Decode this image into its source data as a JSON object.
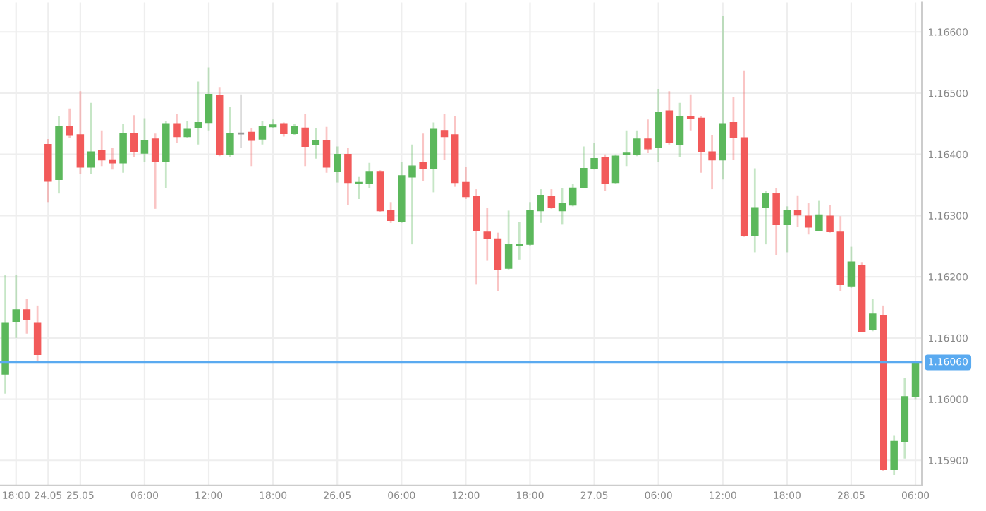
{
  "chart_data": {
    "type": "candlestick",
    "categories": [
      null,
      "18:00",
      null,
      null,
      "24.05",
      null,
      null,
      "25.05",
      null,
      null,
      null,
      null,
      null,
      "06:00",
      null,
      null,
      null,
      null,
      null,
      "12:00",
      null,
      null,
      null,
      null,
      null,
      "18:00",
      null,
      null,
      null,
      null,
      null,
      "26.05",
      null,
      null,
      null,
      null,
      null,
      "06:00",
      null,
      null,
      null,
      null,
      null,
      "12:00",
      null,
      null,
      null,
      null,
      null,
      "18:00",
      null,
      null,
      null,
      null,
      null,
      "27.05",
      null,
      null,
      null,
      null,
      null,
      "06:00",
      null,
      null,
      null,
      null,
      null,
      "12:00",
      null,
      null,
      null,
      null,
      null,
      "18:00",
      null,
      null,
      null,
      null,
      null,
      "28.05",
      null,
      null,
      null,
      null,
      null,
      "06:00"
    ],
    "ohlc": [
      [
        1.16041,
        1.16203,
        1.16009,
        1.16125
      ],
      [
        1.16127,
        1.16203,
        1.161,
        1.16146
      ],
      [
        1.16146,
        1.16164,
        1.16107,
        1.1613
      ],
      [
        1.16125,
        1.16153,
        1.16063,
        1.16073
      ],
      [
        1.16416,
        1.16425,
        1.16322,
        1.16356
      ],
      [
        1.16359,
        1.16462,
        1.16336,
        1.16445
      ],
      [
        1.16445,
        1.16475,
        1.16427,
        1.16432
      ],
      [
        1.16432,
        1.16503,
        1.16368,
        1.16379
      ],
      [
        1.16379,
        1.16484,
        1.16368,
        1.16404
      ],
      [
        1.16407,
        1.16439,
        1.16381,
        1.16391
      ],
      [
        1.16391,
        1.16411,
        1.16375,
        1.16386
      ],
      [
        1.16386,
        1.1645,
        1.1637,
        1.16434
      ],
      [
        1.16434,
        1.16464,
        1.16395,
        1.16404
      ],
      [
        1.16402,
        1.16459,
        1.16388,
        1.16423
      ],
      [
        1.16425,
        1.16434,
        1.16311,
        1.16388
      ],
      [
        1.16388,
        1.16455,
        1.16345,
        1.1645
      ],
      [
        1.1645,
        1.16466,
        1.16418,
        1.16429
      ],
      [
        1.16429,
        1.16455,
        1.16427,
        1.16441
      ],
      [
        1.16443,
        1.16519,
        1.16416,
        1.16452
      ],
      [
        1.16452,
        1.16542,
        1.16439,
        1.16498
      ],
      [
        1.16496,
        1.1651,
        1.16397,
        1.164
      ],
      [
        1.164,
        1.16478,
        1.16395,
        1.16434
      ],
      [
        1.16434,
        1.16498,
        1.16411,
        1.16434
      ],
      [
        1.16436,
        1.16443,
        1.16381,
        1.16423
      ],
      [
        1.16425,
        1.16455,
        1.16416,
        1.16445
      ],
      [
        1.16445,
        1.16457,
        1.16443,
        1.16448
      ],
      [
        1.1645,
        1.16452,
        1.16429,
        1.16434
      ],
      [
        1.16434,
        1.1645,
        1.16432,
        1.16445
      ],
      [
        1.16443,
        1.16466,
        1.16381,
        1.16413
      ],
      [
        1.16416,
        1.16443,
        1.16393,
        1.16423
      ],
      [
        1.16423,
        1.16445,
        1.1637,
        1.16379
      ],
      [
        1.16372,
        1.16413,
        1.16354,
        1.164
      ],
      [
        1.164,
        1.16411,
        1.16317,
        1.16354
      ],
      [
        1.16352,
        1.16363,
        1.16327,
        1.16354
      ],
      [
        1.16352,
        1.16386,
        1.16345,
        1.16372
      ],
      [
        1.16372,
        1.16374,
        1.16306,
        1.16308
      ],
      [
        1.16308,
        1.16322,
        1.16288,
        1.16292
      ],
      [
        1.1629,
        1.16388,
        1.16288,
        1.16365
      ],
      [
        1.16363,
        1.16416,
        1.16253,
        1.16381
      ],
      [
        1.16386,
        1.16434,
        1.16356,
        1.16377
      ],
      [
        1.16377,
        1.16452,
        1.16338,
        1.16441
      ],
      [
        1.16439,
        1.16466,
        1.16391,
        1.16429
      ],
      [
        1.16432,
        1.16462,
        1.16347,
        1.16354
      ],
      [
        1.16354,
        1.16379,
        1.16327,
        1.16331
      ],
      [
        1.16331,
        1.16343,
        1.16187,
        1.16276
      ],
      [
        1.16274,
        1.16313,
        1.16226,
        1.16262
      ],
      [
        1.16262,
        1.16272,
        1.16176,
        1.16212
      ],
      [
        1.16214,
        1.16308,
        1.16212,
        1.16253
      ],
      [
        1.16251,
        1.1629,
        1.16228,
        1.16253
      ],
      [
        1.16253,
        1.16322,
        1.16251,
        1.16308
      ],
      [
        1.16308,
        1.16343,
        1.16288,
        1.16333
      ],
      [
        1.16331,
        1.16343,
        1.16311,
        1.16313
      ],
      [
        1.16308,
        1.16345,
        1.16285,
        1.1632
      ],
      [
        1.16317,
        1.16352,
        1.16315,
        1.16345
      ],
      [
        1.16345,
        1.16413,
        1.16345,
        1.16377
      ],
      [
        1.16377,
        1.16418,
        1.16375,
        1.16393
      ],
      [
        1.16395,
        1.164,
        1.1634,
        1.16352
      ],
      [
        1.16354,
        1.164,
        1.16352,
        1.16397
      ],
      [
        1.164,
        1.16439,
        1.16381,
        1.16402
      ],
      [
        1.164,
        1.16439,
        1.16397,
        1.16425
      ],
      [
        1.16425,
        1.16457,
        1.16402,
        1.16409
      ],
      [
        1.16411,
        1.16507,
        1.16388,
        1.16468
      ],
      [
        1.16471,
        1.16503,
        1.16416,
        1.1642
      ],
      [
        1.16416,
        1.16484,
        1.16395,
        1.16462
      ],
      [
        1.16462,
        1.16498,
        1.16439,
        1.16459
      ],
      [
        1.16459,
        1.16462,
        1.1637,
        1.16404
      ],
      [
        1.16404,
        1.16432,
        1.16343,
        1.16391
      ],
      [
        1.16391,
        1.16626,
        1.16359,
        1.1645
      ],
      [
        1.16452,
        1.16494,
        1.16391,
        1.16427
      ],
      [
        1.16427,
        1.16537,
        1.16265,
        1.16267
      ],
      [
        1.16267,
        1.16377,
        1.1624,
        1.16313
      ],
      [
        1.16313,
        1.1634,
        1.16253,
        1.16336
      ],
      [
        1.16336,
        1.16345,
        1.16235,
        1.16285
      ],
      [
        1.16285,
        1.16315,
        1.1624,
        1.16308
      ],
      [
        1.16308,
        1.16333,
        1.16281,
        1.16301
      ],
      [
        1.16299,
        1.1632,
        1.16269,
        1.16281
      ],
      [
        1.16276,
        1.16324,
        1.16276,
        1.16301
      ],
      [
        1.16299,
        1.16317,
        1.16272,
        1.16274
      ],
      [
        1.16274,
        1.16299,
        1.16176,
        1.16187
      ],
      [
        1.16185,
        1.16249,
        1.16182,
        1.16224
      ],
      [
        1.16219,
        1.16224,
        1.16109,
        1.16111
      ],
      [
        1.16114,
        1.16164,
        1.16111,
        1.16139
      ],
      [
        1.16137,
        1.16153,
        1.15883,
        1.15885
      ],
      [
        1.15885,
        1.1594,
        1.15876,
        1.15931
      ],
      [
        1.15931,
        1.16034,
        1.15903,
        1.16004
      ],
      [
        1.16004,
        1.1606,
        1.15999,
        1.1606
      ]
    ],
    "colors": [
      "#5cb85c",
      "#5cb85c",
      "#f25a5a",
      "#f25a5a",
      "#f25a5a",
      "#5cb85c",
      "#f25a5a",
      "#f25a5a",
      "#5cb85c",
      "#f25a5a",
      "#f25a5a",
      "#5cb85c",
      "#f25a5a",
      "#5cb85c",
      "#f25a5a",
      "#5cb85c",
      "#f25a5a",
      "#5cb85c",
      "#5cb85c",
      "#5cb85c",
      "#f25a5a",
      "#5cb85c",
      "#999999",
      "#f25a5a",
      "#5cb85c",
      "#5cb85c",
      "#f25a5a",
      "#5cb85c",
      "#f25a5a",
      "#5cb85c",
      "#f25a5a",
      "#5cb85c",
      "#f25a5a",
      "#5cb85c",
      "#5cb85c",
      "#f25a5a",
      "#f25a5a",
      "#5cb85c",
      "#5cb85c",
      "#f25a5a",
      "#5cb85c",
      "#f25a5a",
      "#f25a5a",
      "#f25a5a",
      "#f25a5a",
      "#f25a5a",
      "#f25a5a",
      "#5cb85c",
      "#5cb85c",
      "#5cb85c",
      "#5cb85c",
      "#f25a5a",
      "#5cb85c",
      "#5cb85c",
      "#5cb85c",
      "#5cb85c",
      "#f25a5a",
      "#5cb85c",
      "#5cb85c",
      "#5cb85c",
      "#f25a5a",
      "#5cb85c",
      "#f25a5a",
      "#5cb85c",
      "#f25a5a",
      "#f25a5a",
      "#f25a5a",
      "#5cb85c",
      "#f25a5a",
      "#f25a5a",
      "#5cb85c",
      "#5cb85c",
      "#f25a5a",
      "#5cb85c",
      "#f25a5a",
      "#f25a5a",
      "#5cb85c",
      "#f25a5a",
      "#f25a5a",
      "#5cb85c",
      "#f25a5a",
      "#5cb85c",
      "#f25a5a",
      "#5cb85c",
      "#5cb85c",
      "#5cb85c"
    ],
    "ylim": [
      1.15859,
      1.16648
    ],
    "yticks": [
      {
        "value": 1.159,
        "label": "1.15900"
      },
      {
        "value": 1.16,
        "label": "1.16000"
      },
      {
        "value": 1.161,
        "label": "1.16100"
      },
      {
        "value": 1.162,
        "label": "1.16200"
      },
      {
        "value": 1.163,
        "label": "1.16300"
      },
      {
        "value": 1.164,
        "label": "1.16400"
      },
      {
        "value": 1.165,
        "label": "1.16500"
      },
      {
        "value": 1.166,
        "label": "1.16600"
      }
    ],
    "ref_lines": [
      {
        "axis": "y",
        "value": 1.1606,
        "label": "1.16060",
        "color": "#5aaaf0"
      }
    ],
    "grid": true
  }
}
